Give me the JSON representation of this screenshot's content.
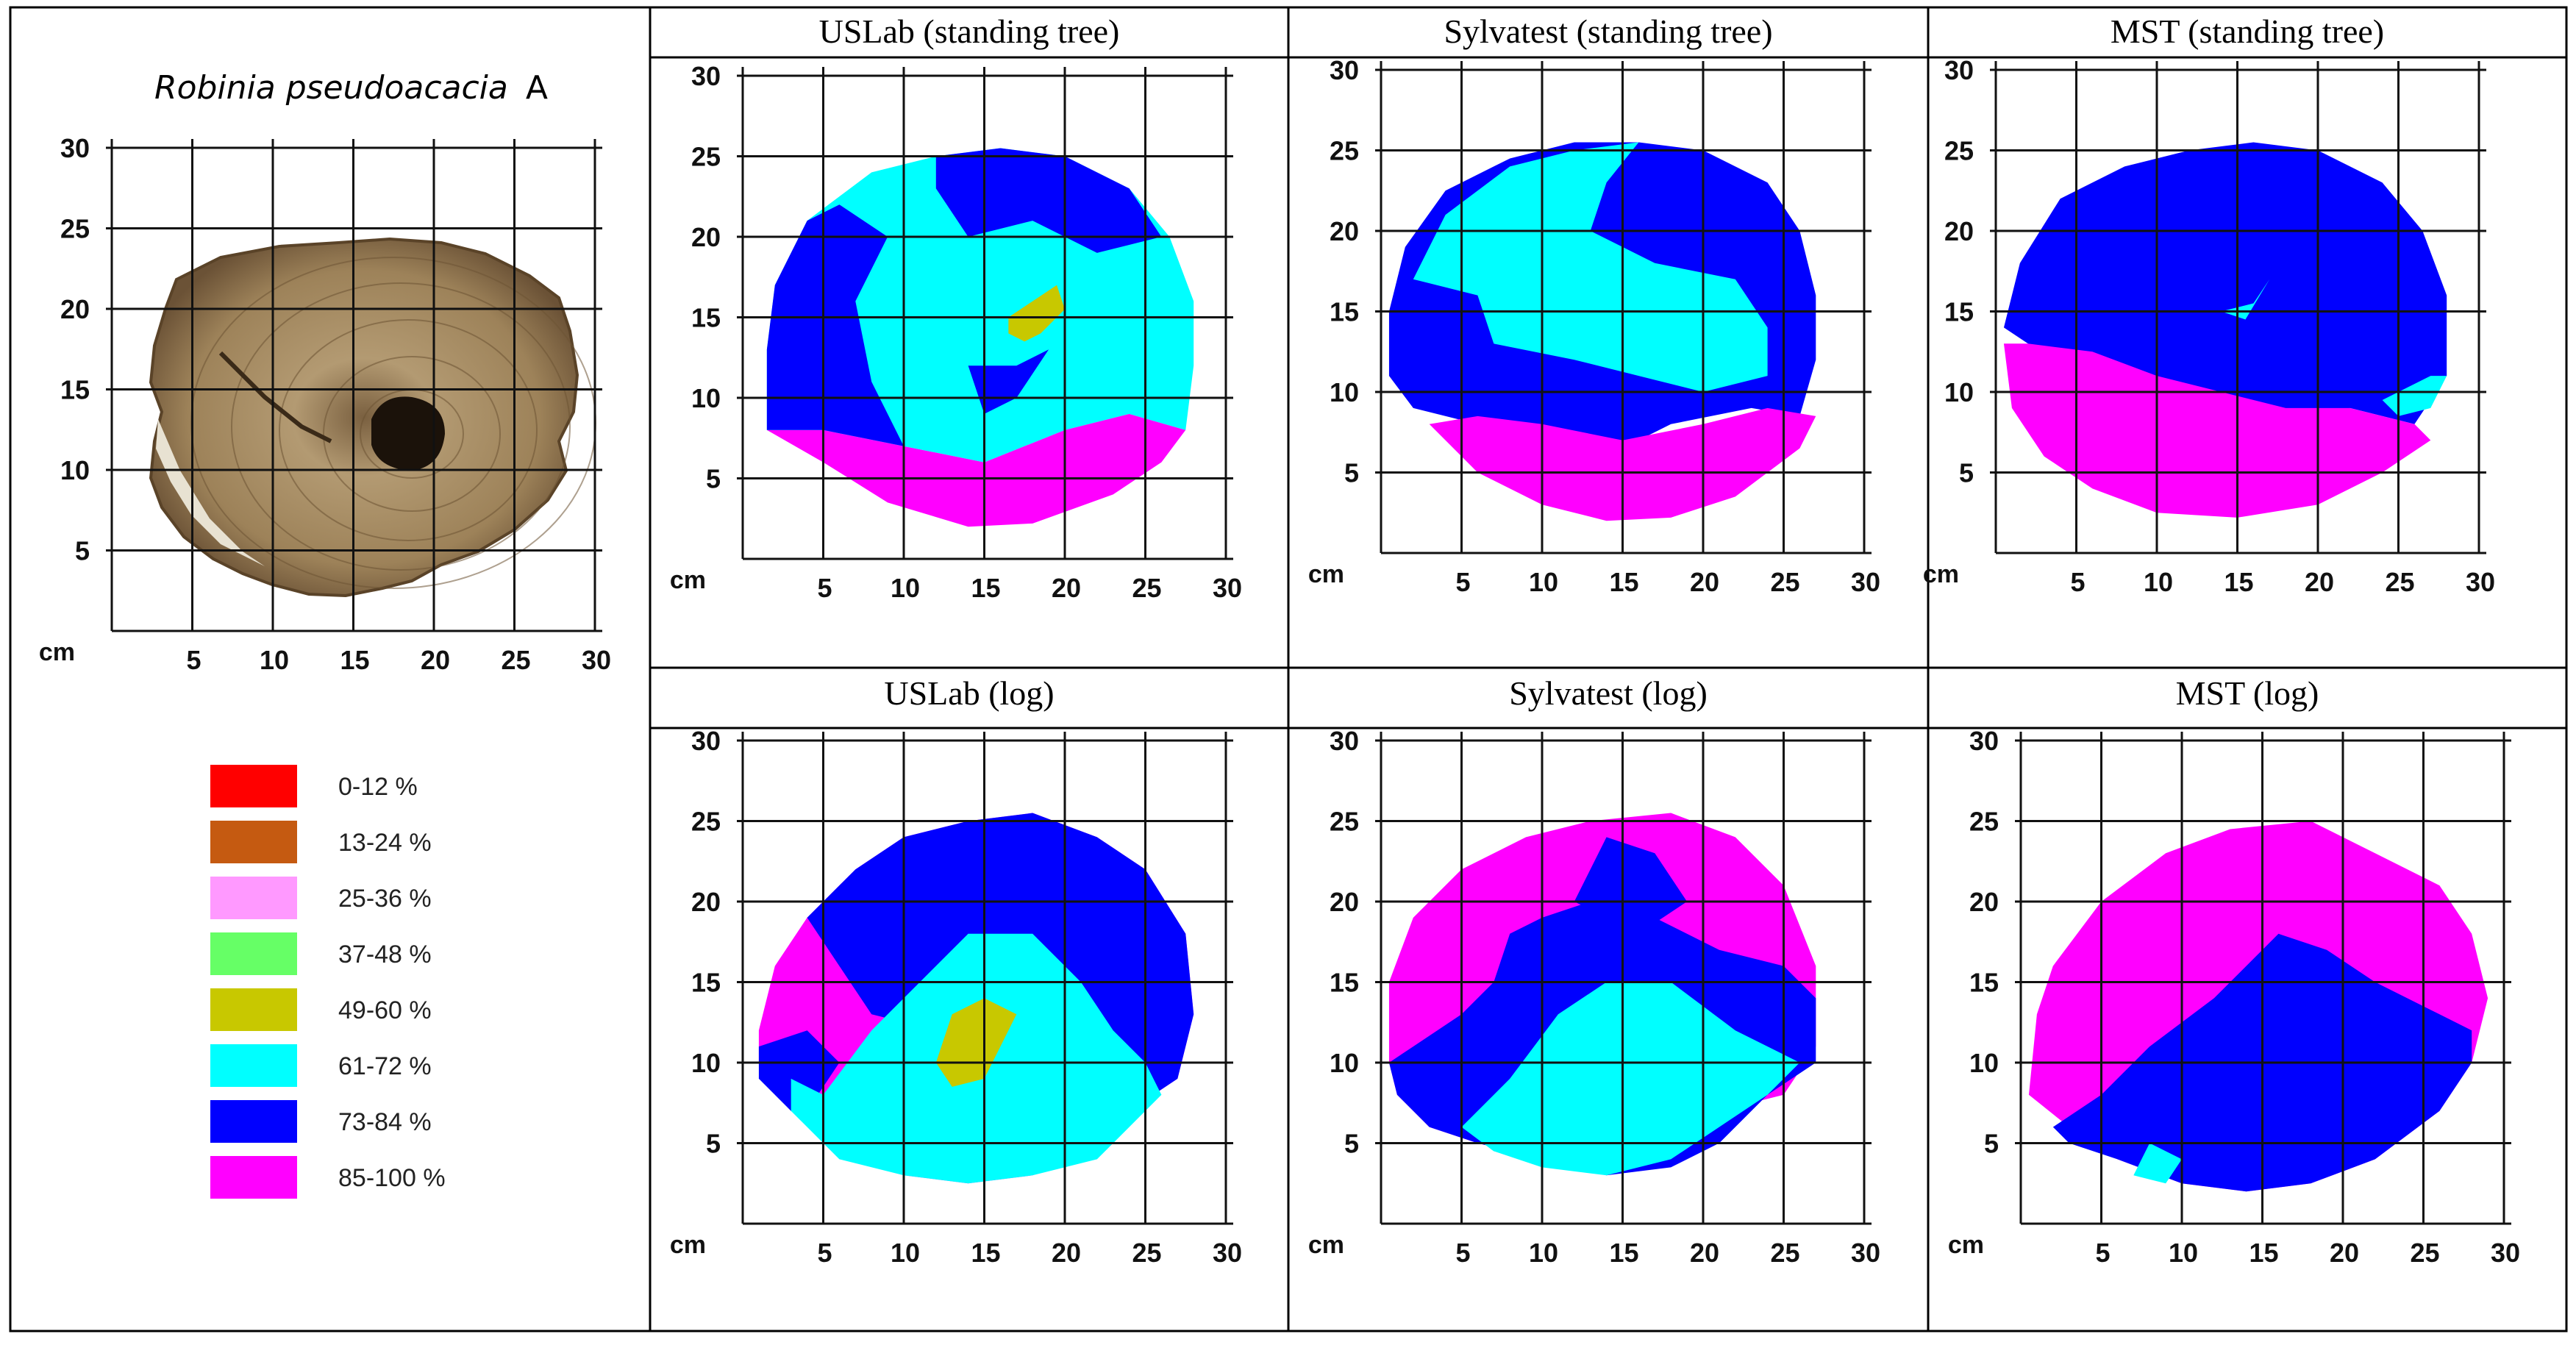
{
  "sample": {
    "species_italic": "Robinia pseudoacacia",
    "species_suffix": "A"
  },
  "axes": {
    "unit": "cm",
    "x_ticks": [
      "5",
      "10",
      "15",
      "20",
      "25",
      "30"
    ],
    "y_ticks": [
      "5",
      "10",
      "15",
      "20",
      "25",
      "30"
    ]
  },
  "legend": [
    {
      "label": "0-12 %",
      "color": "#ff0000"
    },
    {
      "label": "13-24 %",
      "color": "#c55a11"
    },
    {
      "label": "25-36 %",
      "color": "#ff99ff"
    },
    {
      "label": "37-48 %",
      "color": "#66ff66"
    },
    {
      "label": "49-60 %",
      "color": "#c8c800"
    },
    {
      "label": "61-72 %",
      "color": "#00ffff"
    },
    {
      "label": "73-84 %",
      "color": "#0000ff"
    },
    {
      "label": "85-100 %",
      "color": "#ff00ff"
    }
  ],
  "panels": [
    {
      "title": "USLab (standing tree)"
    },
    {
      "title": "Sylvatest (standing tree)"
    },
    {
      "title": "MST (standing tree)"
    },
    {
      "title": "USLab (log)"
    },
    {
      "title": "Sylvatest (log)"
    },
    {
      "title": "MST (log)"
    }
  ],
  "colors": {
    "magenta": "#ff00ff",
    "blue": "#0000ff",
    "cyan": "#00ffff",
    "olive": "#c8c800",
    "wood": "#9a7e58",
    "grid": "#111111"
  }
}
